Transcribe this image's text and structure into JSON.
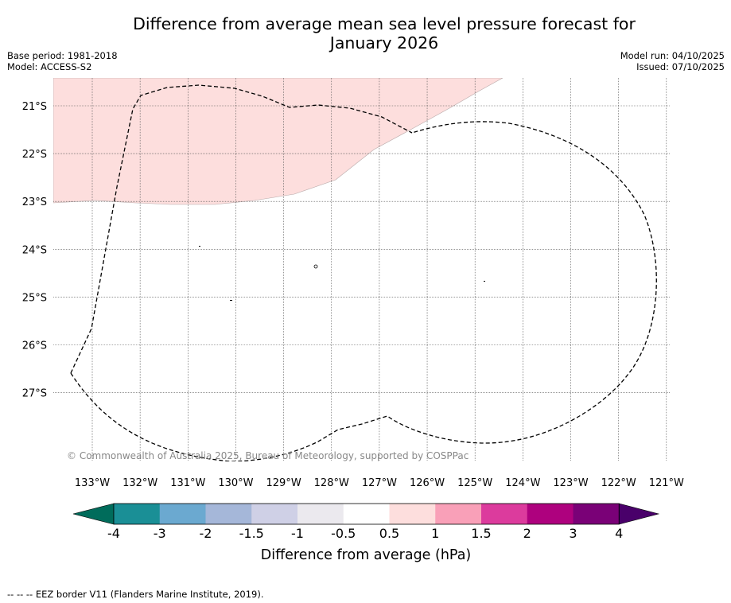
{
  "header": {
    "title_line1": "Difference from average mean sea level pressure forecast for",
    "title_line2": "January 2026",
    "base_period": "Base period: 1981-2018",
    "model": "Model: ACCESS-S2",
    "model_run": "Model run: 04/10/2025",
    "issued": "Issued: 07/10/2025"
  },
  "map": {
    "latitude_labels": [
      "21°S",
      "22°S",
      "23°S",
      "24°S",
      "25°S",
      "26°S",
      "27°S"
    ],
    "longitude_labels": [
      "133°W",
      "132°W",
      "131°W",
      "130°W",
      "129°W",
      "128°W",
      "127°W",
      "126°W",
      "125°W",
      "124°W",
      "123°W",
      "122°W",
      "121°W"
    ],
    "copyright": "© Commonwealth of Australia 2025, Bureau of Meteorology, supported by COSPPac",
    "region_color": "#fddedd",
    "anomaly_region": "0.5 to 1 hPa"
  },
  "colorbar": {
    "ticks": [
      "-4",
      "-3",
      "-2",
      "-1.5",
      "-1",
      "-0.5",
      "0.5",
      "1",
      "1.5",
      "2",
      "3",
      "4"
    ],
    "colors": [
      "#1a8f96",
      "#6ba9d0",
      "#a5b7d9",
      "#cfd0e6",
      "#ebe9ee",
      "#ffffff",
      "#fddedd",
      "#f9a0b8",
      "#dc3b9d",
      "#ae017e",
      "#7a0177"
    ],
    "under_color": "#006c5b",
    "over_color": "#49006a",
    "label": "Difference from average (hPa)"
  },
  "footnote": "--  --  -- EEZ border V11 (Flanders Marine Institute, 2019)."
}
